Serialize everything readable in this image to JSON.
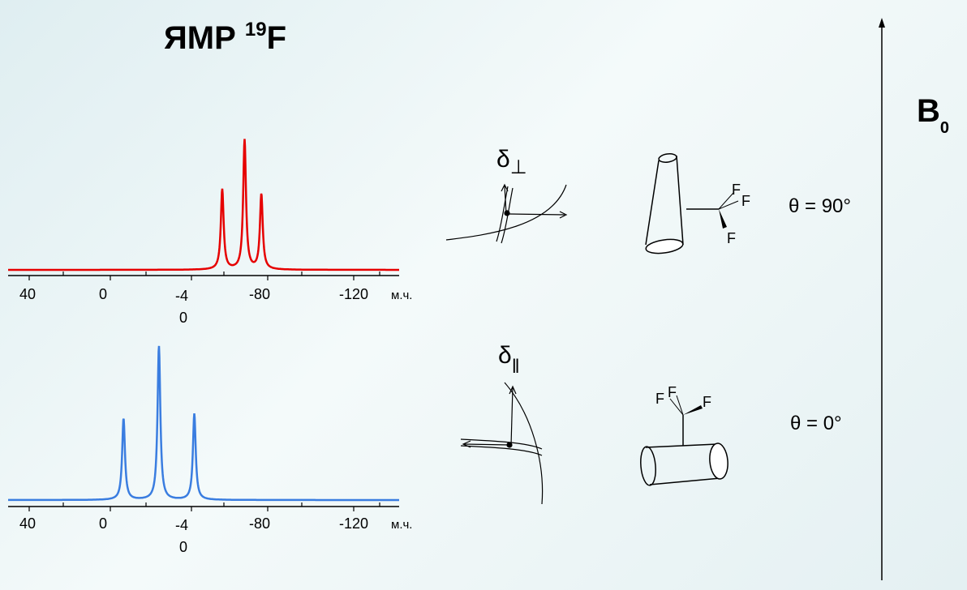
{
  "title": {
    "main": "ЯМР ",
    "isotope": "19",
    "element": "F"
  },
  "spectra": [
    {
      "id": "perpendicular",
      "color": "#e60000",
      "ticks": [
        "40",
        "0",
        "-4",
        "0",
        "-80",
        "-120",
        "м.ч."
      ],
      "peaks": [
        -65,
        -77,
        -86
      ],
      "peak_heights": [
        0.62,
        1.0,
        0.58
      ]
    },
    {
      "id": "parallel",
      "color": "#3a7de0",
      "ticks": [
        "40",
        "0",
        "-4",
        "0",
        "-80",
        "-120",
        "м.ч."
      ],
      "peaks": [
        -12,
        -31,
        -50
      ],
      "peak_heights": [
        0.53,
        1.0,
        0.56
      ]
    }
  ],
  "diagrams": {
    "perp_label": "δ",
    "perp_sub": "⊥",
    "par_label": "δ",
    "par_sub": "‖",
    "fluorine": "F"
  },
  "angles": {
    "top": "θ = 90°",
    "bottom": "θ = 0°"
  },
  "field": {
    "label": "B",
    "sub": "0"
  },
  "colors": {
    "red": "#e60000",
    "blue": "#3a7de0",
    "axis": "#000000"
  }
}
